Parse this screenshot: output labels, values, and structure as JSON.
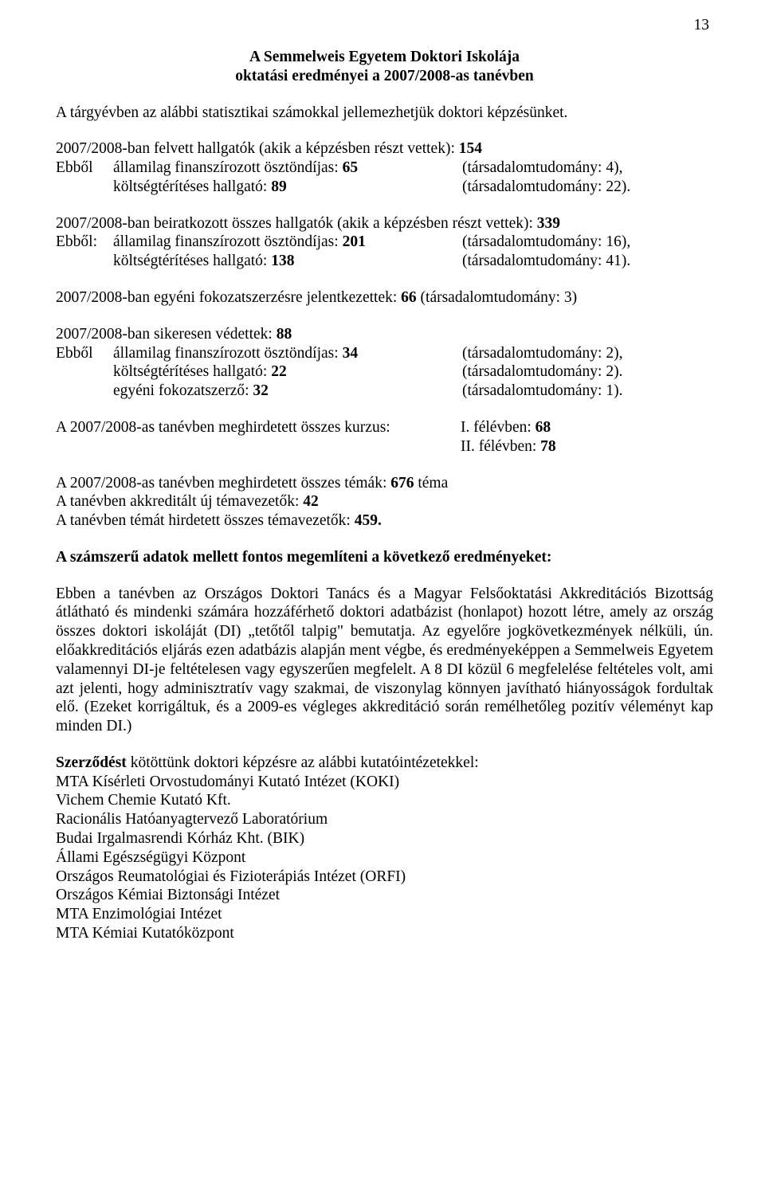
{
  "page_number": "13",
  "title_line1": "A Semmelweis Egyetem Doktori Iskolája",
  "title_line2": "oktatási eredményei a 2007/2008-as tanévben",
  "intro": "A tárgyévben az alábbi statisztikai számokkal jellemezhetjük doktori képzésünket.",
  "felvett_line": "2007/2008-ban felvett hallgatók (akik a képzésben részt vettek): ",
  "felvett_num": "154",
  "ebbol": "Ebből",
  "ebbol_colon": "Ebből:",
  "felvett_a_left": "államilag finanszírozott ösztöndíjas: ",
  "felvett_a_num": "65",
  "felvett_a_right": "(társadalomtudomány: 4),",
  "felvett_b_left": "költségtérítéses hallgató: ",
  "felvett_b_num": "89",
  "felvett_b_right": "(társadalomtudomány: 22).",
  "beirat_line": "2007/2008-ban beiratkozott összes hallgatók (akik a képzésben részt vettek): ",
  "beirat_num": "339",
  "beirat_a_left": "államilag finanszírozott ösztöndíjas: ",
  "beirat_a_num": "201",
  "beirat_a_right": "(társadalomtudomány: 16),",
  "beirat_b_left": "költségtérítéses hallgató: ",
  "beirat_b_num": "138",
  "beirat_b_right": "(társadalomtudomány: 41).",
  "egyeni_line": "2007/2008-ban egyéni fokozatszerzésre jelentkezettek: ",
  "egyeni_num": "66",
  "egyeni_right": " (társadalomtudomány: 3)",
  "sikeresen_line": "2007/2008-ban sikeresen védettek: ",
  "sikeresen_num": "88",
  "sik_a_left": "államilag finanszírozott ösztöndíjas: ",
  "sik_a_num": "34",
  "sik_a_right": "(társadalomtudomány: 2),",
  "sik_b_left": "költségtérítéses hallgató: ",
  "sik_b_num": "22",
  "sik_b_right": "(társadalomtudomány: 2).",
  "sik_c_left": "egyéni fokozatszerző: ",
  "sik_c_num": "32",
  "sik_c_right": "(társadalomtudomány: 1).",
  "kurzus_left": "A 2007/2008-as tanévben meghirdetett összes kurzus:",
  "kurzus_r1_pre": "I. félévben: ",
  "kurzus_r1_num": "68",
  "kurzus_r2_pre": "II. félévben: ",
  "kurzus_r2_num": "78",
  "temak_line_pre": "A 2007/2008-as tanévben meghirdetett összes témák: ",
  "temak_num": "676",
  "temak_line_post": " téma",
  "akkred_line_pre": "A tanévben akkreditált új témavezetők: ",
  "akkred_num": "42",
  "hirdetett_line_pre": "A tanévben témát hirdetett összes témavezetők: ",
  "hirdetett_num": "459.",
  "bold_results": "A számszerű adatok mellett fontos megemlíteni a következő eredményeket:",
  "para_big": "Ebben a tanévben az Országos Doktori Tanács és a Magyar Felsőoktatási Akkreditációs Bizottság átlátható és mindenki számára hozzáférhető doktori adatbázist (honlapot) hozott létre, amely az ország összes doktori iskoláját (DI) „tetőtől talpig\" bemutatja. Az egyelőre jogkövetkezmények nélküli, ún. előakkreditációs eljárás ezen adatbázis alapján ment végbe, és eredményeképpen a Semmelweis Egyetem valamennyi DI-je feltételesen vagy egyszerűen megfelelt. A 8 DI közül 6 megfelelése feltételes volt, ami azt jelenti, hogy adminisztratív vagy szakmai, de viszonylag könnyen javítható hiányosságok fordultak elő. (Ezeket korrigáltuk, és a 2009-es végleges akkreditáció során remélhetőleg pozitív véleményt kap minden DI.)",
  "szerzodes_bold": "Szerződést",
  "szerzodes_rest": " kötöttünk doktori képzésre az alábbi kutatóintézetekkel:",
  "inst_1": "MTA Kísérleti Orvostudományi Kutató Intézet (KOKI)",
  "inst_2": "Vichem Chemie Kutató Kft.",
  "inst_3": "Racionális Hatóanyagtervező Laboratórium",
  "inst_4": "Budai Irgalmasrendi Kórház Kht. (BIK)",
  "inst_5": "Állami Egészségügyi Központ",
  "inst_6": "Országos Reumatológiai és Fizioterápiás Intézet (ORFI)",
  "inst_7": "Országos Kémiai Biztonsági Intézet",
  "inst_8": "MTA Enzimológiai Intézet",
  "inst_9": "MTA Kémiai Kutatóközpont"
}
